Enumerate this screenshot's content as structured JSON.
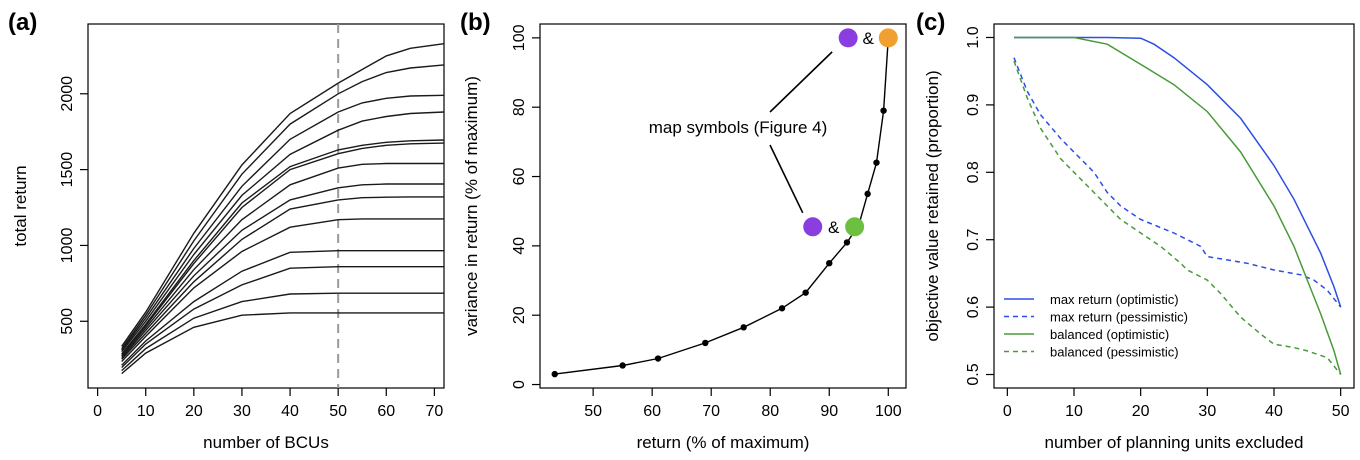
{
  "chart_data": [
    {
      "panel": "(a)",
      "type": "line",
      "xlabel": "number of BCUs",
      "ylabel": "total return",
      "xlim": [
        -2,
        72
      ],
      "ylim": [
        60,
        2460
      ],
      "xticks": [
        0,
        10,
        20,
        30,
        40,
        50,
        60,
        70
      ],
      "yticks": [
        500,
        1000,
        1500,
        2000
      ],
      "x": [
        5,
        10,
        20,
        30,
        40,
        50,
        55,
        60,
        65,
        72
      ],
      "reference_line": {
        "x": 50,
        "style": "dashed",
        "color": "#9a9a9a"
      },
      "series": [
        {
          "values": [
            155,
            290,
            460,
            540,
            555,
            555,
            555,
            555,
            555,
            555
          ]
        },
        {
          "values": [
            175,
            320,
            520,
            630,
            680,
            685,
            685,
            685,
            685,
            685
          ]
        },
        {
          "values": [
            195,
            350,
            580,
            740,
            850,
            860,
            860,
            860,
            860,
            860
          ]
        },
        {
          "values": [
            210,
            370,
            630,
            830,
            955,
            965,
            965,
            965,
            965,
            965
          ]
        },
        {
          "values": [
            235,
            400,
            720,
            960,
            1120,
            1170,
            1175,
            1175,
            1175,
            1175
          ]
        },
        {
          "values": [
            250,
            420,
            760,
            1040,
            1240,
            1300,
            1315,
            1318,
            1320,
            1320
          ]
        },
        {
          "values": [
            260,
            440,
            800,
            1100,
            1300,
            1380,
            1400,
            1405,
            1405,
            1405
          ]
        },
        {
          "values": [
            270,
            455,
            840,
            1170,
            1400,
            1510,
            1535,
            1540,
            1540,
            1540
          ]
        },
        {
          "values": [
            280,
            470,
            880,
            1250,
            1500,
            1605,
            1640,
            1660,
            1670,
            1675
          ]
        },
        {
          "values": [
            285,
            480,
            900,
            1280,
            1520,
            1630,
            1660,
            1680,
            1690,
            1695
          ]
        },
        {
          "values": [
            300,
            500,
            940,
            1330,
            1600,
            1760,
            1820,
            1850,
            1870,
            1880
          ]
        },
        {
          "values": [
            310,
            520,
            980,
            1390,
            1700,
            1880,
            1940,
            1970,
            1985,
            1990
          ]
        },
        {
          "values": [
            320,
            540,
            1030,
            1470,
            1800,
            2000,
            2080,
            2140,
            2170,
            2190
          ]
        },
        {
          "values": [
            335,
            560,
            1080,
            1530,
            1870,
            2070,
            2160,
            2250,
            2300,
            2330
          ]
        }
      ]
    },
    {
      "panel": "(b)",
      "type": "line",
      "xlabel": "return (% of maximum)",
      "ylabel": "variance in return (% of maximum)",
      "xlim": [
        41,
        103
      ],
      "ylim": [
        -1,
        104
      ],
      "xticks": [
        50,
        60,
        70,
        80,
        90,
        100
      ],
      "yticks": [
        0,
        20,
        40,
        60,
        80,
        100
      ],
      "points": [
        [
          43.5,
          3
        ],
        [
          55,
          5.5
        ],
        [
          61,
          7.5
        ],
        [
          69,
          12
        ],
        [
          75.5,
          16.5
        ],
        [
          82,
          22
        ],
        [
          86,
          26.5
        ],
        [
          90,
          35
        ],
        [
          93,
          41
        ],
        [
          95,
          46
        ],
        [
          96.5,
          55
        ],
        [
          98,
          64
        ],
        [
          99.2,
          79
        ],
        [
          100,
          100
        ]
      ],
      "annotation": "map symbols (Figure 4)",
      "ampersand": "&",
      "symbols": [
        {
          "x": 93.2,
          "y": 100,
          "color": "#8a3ee0"
        },
        {
          "x": 100,
          "y": 100,
          "color": "#f0a030"
        },
        {
          "x": 87.2,
          "y": 45.5,
          "color": "#8a3ee0"
        },
        {
          "x": 94.3,
          "y": 45.5,
          "color": "#6cc040"
        }
      ]
    },
    {
      "panel": "(c)",
      "type": "line",
      "xlabel": "number of planning units excluded",
      "ylabel": "objective value retained (proportion)",
      "xlim": [
        -2,
        52
      ],
      "ylim": [
        0.48,
        1.02
      ],
      "xticks": [
        0,
        10,
        20,
        30,
        40,
        50
      ],
      "yticks": [
        0.5,
        0.6,
        0.7,
        0.8,
        0.9,
        1.0
      ],
      "ytick_labels": [
        "0.5",
        "0.6",
        "0.7",
        "0.8",
        "0.9",
        "1.0"
      ],
      "legend_position": "bottom-left",
      "series": [
        {
          "name": "max return (optimistic)",
          "color": "#2b4ee6",
          "dash": "solid",
          "points": [
            [
              1,
              1.0
            ],
            [
              5,
              1.0
            ],
            [
              10,
              1.0
            ],
            [
              15,
              1.0
            ],
            [
              20,
              0.999
            ],
            [
              22,
              0.99
            ],
            [
              25,
              0.97
            ],
            [
              30,
              0.93
            ],
            [
              35,
              0.88
            ],
            [
              40,
              0.81
            ],
            [
              43,
              0.76
            ],
            [
              45,
              0.72
            ],
            [
              47,
              0.68
            ],
            [
              49,
              0.63
            ],
            [
              50,
              0.6
            ]
          ]
        },
        {
          "name": "max return (pessimistic)",
          "color": "#2b4ee6",
          "dash": "dashed",
          "points": [
            [
              1,
              0.97
            ],
            [
              3,
              0.92
            ],
            [
              5,
              0.885
            ],
            [
              8,
              0.85
            ],
            [
              10,
              0.83
            ],
            [
              13,
              0.8
            ],
            [
              15,
              0.77
            ],
            [
              17,
              0.75
            ],
            [
              20,
              0.73
            ],
            [
              25,
              0.71
            ],
            [
              29,
              0.69
            ],
            [
              30,
              0.675
            ],
            [
              33,
              0.67
            ],
            [
              36,
              0.665
            ],
            [
              40,
              0.655
            ],
            [
              44,
              0.648
            ],
            [
              46,
              0.64
            ],
            [
              48,
              0.625
            ],
            [
              50,
              0.6
            ]
          ]
        },
        {
          "name": "balanced (optimistic)",
          "color": "#4a9a3a",
          "dash": "solid",
          "points": [
            [
              1,
              1.0
            ],
            [
              5,
              1.0
            ],
            [
              10,
              1.0
            ],
            [
              15,
              0.99
            ],
            [
              20,
              0.96
            ],
            [
              25,
              0.93
            ],
            [
              30,
              0.89
            ],
            [
              35,
              0.83
            ],
            [
              40,
              0.75
            ],
            [
              43,
              0.69
            ],
            [
              45,
              0.64
            ],
            [
              47,
              0.59
            ],
            [
              49,
              0.535
            ],
            [
              50,
              0.5
            ]
          ]
        },
        {
          "name": "balanced (pessimistic)",
          "color": "#4a9a3a",
          "dash": "dashed",
          "points": [
            [
              1,
              0.965
            ],
            [
              3,
              0.91
            ],
            [
              5,
              0.865
            ],
            [
              8,
              0.82
            ],
            [
              10,
              0.8
            ],
            [
              13,
              0.77
            ],
            [
              15,
              0.75
            ],
            [
              17,
              0.73
            ],
            [
              20,
              0.71
            ],
            [
              23,
              0.69
            ],
            [
              26,
              0.665
            ],
            [
              27,
              0.655
            ],
            [
              30,
              0.64
            ],
            [
              32,
              0.62
            ],
            [
              35,
              0.585
            ],
            [
              38,
              0.56
            ],
            [
              40,
              0.545
            ],
            [
              43,
              0.54
            ],
            [
              45,
              0.535
            ],
            [
              48,
              0.525
            ],
            [
              50,
              0.5
            ]
          ]
        }
      ]
    }
  ]
}
